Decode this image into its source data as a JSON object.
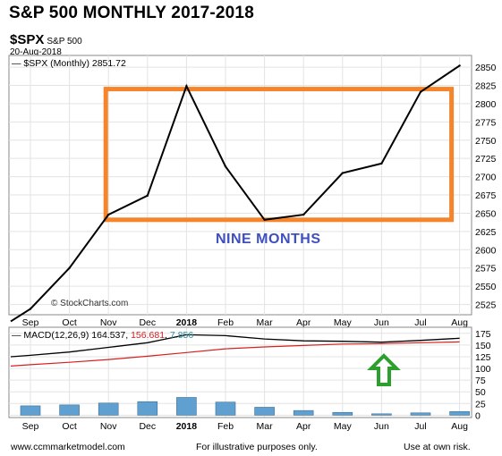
{
  "headline": "S&P 500 MONTHLY  2017-2018",
  "symbol": "$SPX",
  "symbol_name": "S&P 500",
  "date": "20-Aug-2018",
  "price_legend": "$SPX (Monthly) 2851.72",
  "watermark": "© StockCharts.com",
  "annotation": "NINE MONTHS",
  "macd_legend": {
    "label": "MACD(12,26,9)",
    "macd": "164.537",
    "signal": "156.681",
    "histogram": "7.856"
  },
  "footer": {
    "left": "www.ccmmarketmodel.com",
    "center": "For illustrative purposes only.",
    "right": "Use at own risk."
  },
  "colors": {
    "price_line": "#000000",
    "box": "#f5842a",
    "annotation": "#3e4fc1",
    "signal_line": "#d62020",
    "histogram": "#5fa0d0",
    "histogram_value": "#2f8f9a",
    "arrow_fill": "#ffffff",
    "arrow_stroke": "#2ca02c"
  },
  "chart_data": [
    {
      "type": "line",
      "title": "S&P 500 MONTHLY  2017-2018",
      "categories": [
        "Sep",
        "Oct",
        "Nov",
        "Dec",
        "2018",
        "Feb",
        "Mar",
        "Apr",
        "May",
        "Jun",
        "Jul",
        "Aug"
      ],
      "series": [
        {
          "name": "$SPX (Monthly)",
          "values": [
            2519,
            2575,
            2648,
            2674,
            2824,
            2714,
            2641,
            2648,
            2705,
            2718,
            2816,
            2852
          ]
        }
      ],
      "y_ticks": [
        2525,
        2550,
        2575,
        2600,
        2625,
        2650,
        2675,
        2700,
        2725,
        2750,
        2775,
        2800,
        2825,
        2850
      ],
      "ylim": [
        2511,
        2866
      ],
      "grid": true,
      "annotation_box": {
        "x_from": "Nov",
        "x_to": "Aug",
        "y_from": 2641,
        "y_to": 2820
      }
    },
    {
      "type": "line",
      "categories": [
        "Sep",
        "Oct",
        "Nov",
        "Dec",
        "2018",
        "Feb",
        "Mar",
        "Apr",
        "May",
        "Jun",
        "Jul",
        "Aug"
      ],
      "series": [
        {
          "name": "MACD",
          "values": [
            128,
            135,
            145,
            155,
            172,
            170,
            163,
            159,
            158,
            156,
            160,
            164.5
          ]
        },
        {
          "name": "Signal",
          "values": [
            108,
            113,
            119,
            126,
            134,
            142,
            146,
            149,
            152,
            153,
            155,
            156.7
          ]
        },
        {
          "name": "Histogram",
          "type": "bar",
          "values": [
            20,
            22,
            26,
            29,
            38,
            28,
            17,
            10,
            6,
            3,
            5,
            7.9
          ]
        }
      ],
      "y_ticks": [
        0,
        25,
        50,
        75,
        100,
        125,
        150,
        175
      ],
      "ylim": [
        -5,
        188
      ],
      "grid": true
    }
  ]
}
